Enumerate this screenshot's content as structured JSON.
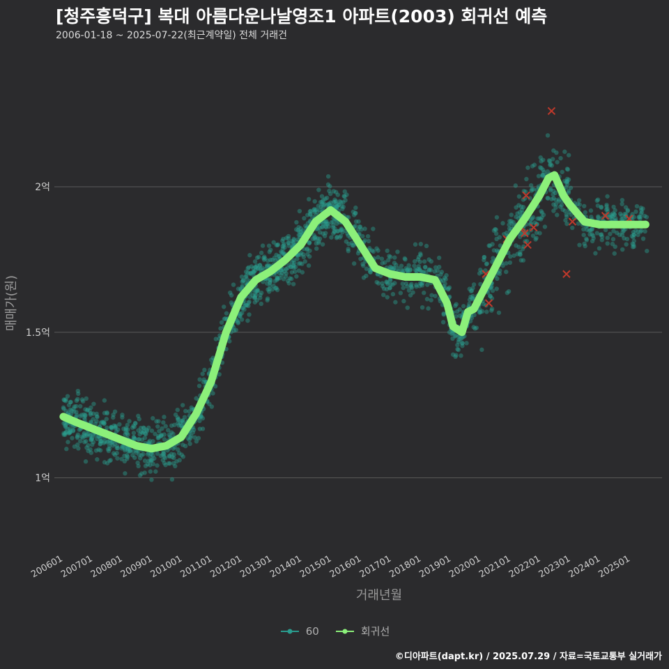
{
  "title": "[청주흥덕구] 복대 아름다운나날영조1 아파트(2003) 회귀선 예측",
  "subtitle": "2006-01-18 ~ 2025-07-22(최근계약일) 전체 거래건",
  "caption": "©디아파트(dapt.kr) / 2025.07.29 / 자료=국토교통부 실거래가",
  "legend": {
    "series_label": "60",
    "line_label": "회귀선"
  },
  "colors": {
    "points": "#2a9d8f",
    "line": "#8cf07a",
    "cancel": "#c0392b",
    "grid": "#5a5a5a",
    "background": "#2b2b2d"
  },
  "chart_data": {
    "type": "scatter",
    "xlabel": "거래년월",
    "ylabel": "매매가(원)",
    "x_ticks": [
      "200601",
      "200701",
      "200801",
      "200901",
      "201001",
      "201101",
      "201201",
      "201301",
      "201401",
      "201501",
      "201601",
      "201701",
      "201801",
      "201901",
      "202001",
      "202101",
      "202201",
      "202301",
      "202401",
      "202501"
    ],
    "y_ticks": [
      {
        "value": 1.0,
        "label": "1억"
      },
      {
        "value": 1.5,
        "label": "1.5억"
      },
      {
        "value": 2.0,
        "label": "2억"
      }
    ],
    "ylim": [
      0.75,
      2.45
    ],
    "xlim": [
      2005.75,
      2026.1
    ],
    "series": [
      {
        "name": "회귀선",
        "x": [
          2006.05,
          2006.5,
          2007.0,
          2007.5,
          2008.0,
          2008.5,
          2009.0,
          2009.5,
          2010.0,
          2010.5,
          2011.0,
          2011.5,
          2012.0,
          2012.5,
          2013.0,
          2013.5,
          2014.0,
          2014.5,
          2015.0,
          2015.5,
          2016.0,
          2016.5,
          2017.0,
          2017.5,
          2018.0,
          2018.5,
          2018.9,
          2019.1,
          2019.4,
          2019.6,
          2019.8,
          2020.0,
          2020.5,
          2021.0,
          2021.5,
          2022.0,
          2022.3,
          2022.5,
          2022.8,
          2023.0,
          2023.5,
          2024.0,
          2024.5,
          2025.0,
          2025.55
        ],
        "y": [
          1.21,
          1.19,
          1.17,
          1.15,
          1.13,
          1.11,
          1.1,
          1.11,
          1.14,
          1.22,
          1.33,
          1.5,
          1.62,
          1.68,
          1.71,
          1.75,
          1.8,
          1.88,
          1.92,
          1.88,
          1.8,
          1.72,
          1.7,
          1.69,
          1.69,
          1.68,
          1.6,
          1.52,
          1.5,
          1.57,
          1.58,
          1.62,
          1.72,
          1.82,
          1.89,
          1.97,
          2.03,
          2.04,
          1.97,
          1.94,
          1.88,
          1.87,
          1.87,
          1.87,
          1.87
        ]
      }
    ]
  }
}
